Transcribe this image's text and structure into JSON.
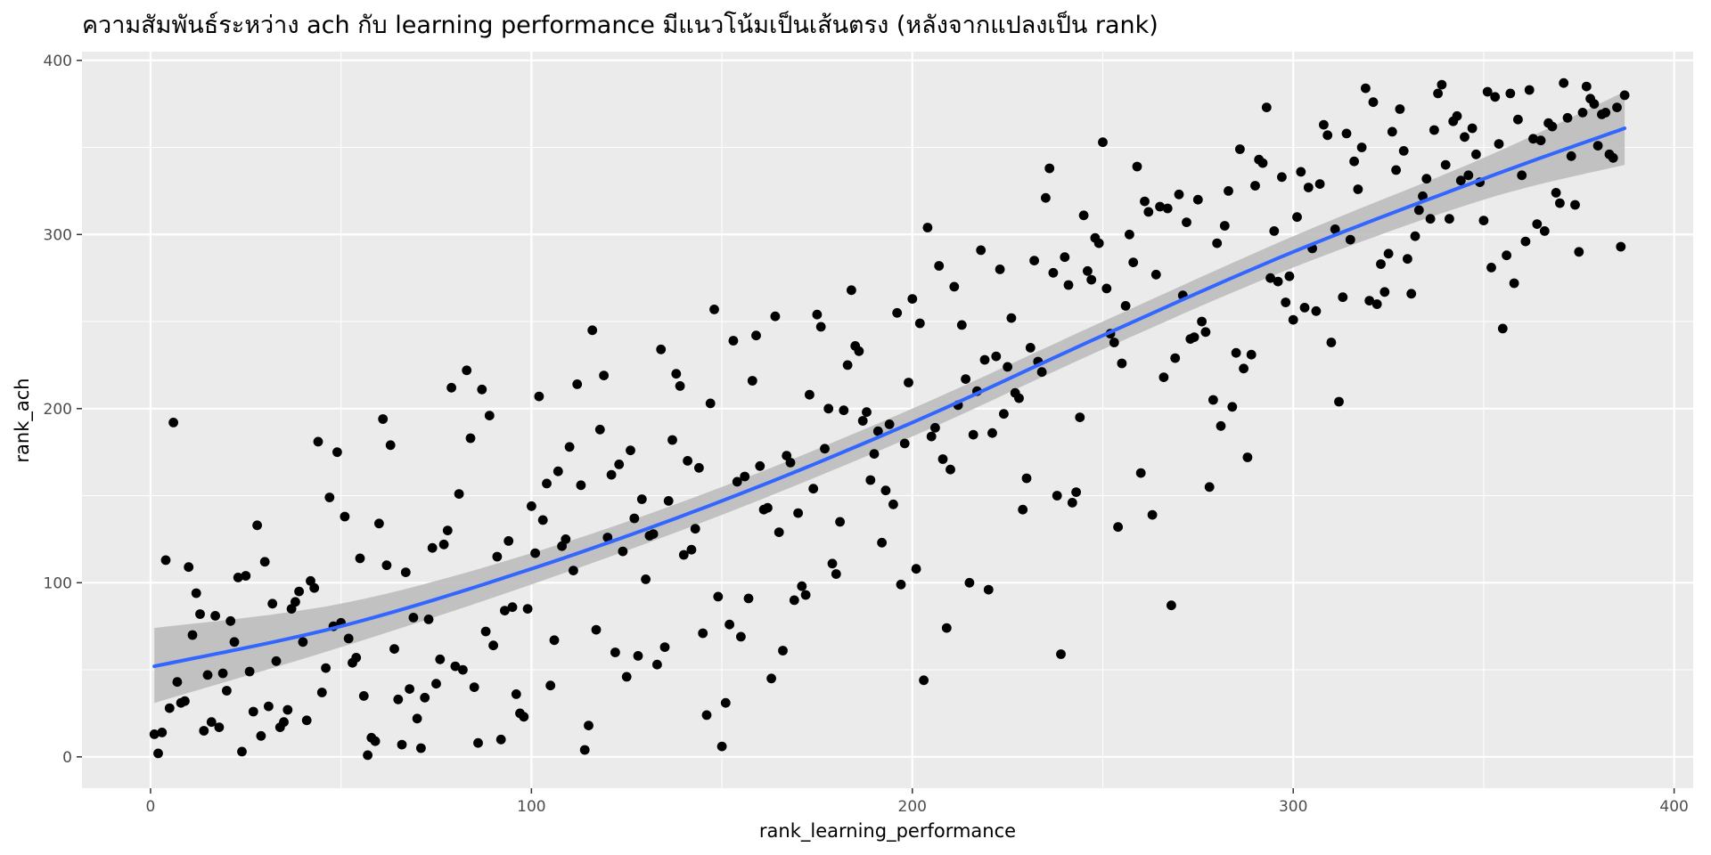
{
  "chart_data": {
    "type": "scatter",
    "title": "ความสัมพันธ์ระหว่าง ach กับ learning performance มีแนวโน้มเป็นเส้นตรง (หลังจากแปลงเป็น rank)",
    "xlabel": "rank_learning_performance",
    "ylabel": "rank_ach",
    "xlim": [
      -18,
      405
    ],
    "ylim": [
      -18,
      405
    ],
    "xticks": [
      0,
      100,
      200,
      300,
      400
    ],
    "yticks": [
      0,
      100,
      200,
      300,
      400
    ],
    "grid": true,
    "colors": {
      "panel": "#ebebeb",
      "grid": "#ffffff",
      "points": "#000000",
      "smooth": "#3366ff",
      "ribbon": "#bdbdbd"
    },
    "points": [
      [
        1,
        13
      ],
      [
        2,
        2
      ],
      [
        3,
        14
      ],
      [
        4,
        113
      ],
      [
        5,
        28
      ],
      [
        6,
        192
      ],
      [
        7,
        43
      ],
      [
        8,
        31
      ],
      [
        9,
        32
      ],
      [
        10,
        109
      ],
      [
        11,
        70
      ],
      [
        12,
        94
      ],
      [
        13,
        82
      ],
      [
        14,
        15
      ],
      [
        15,
        47
      ],
      [
        16,
        20
      ],
      [
        17,
        81
      ],
      [
        18,
        17
      ],
      [
        19,
        48
      ],
      [
        20,
        38
      ],
      [
        21,
        78
      ],
      [
        22,
        66
      ],
      [
        23,
        103
      ],
      [
        24,
        3
      ],
      [
        25,
        104
      ],
      [
        26,
        49
      ],
      [
        27,
        26
      ],
      [
        28,
        133
      ],
      [
        29,
        12
      ],
      [
        30,
        112
      ],
      [
        31,
        29
      ],
      [
        32,
        88
      ],
      [
        33,
        55
      ],
      [
        34,
        17
      ],
      [
        35,
        20
      ],
      [
        36,
        27
      ],
      [
        37,
        85
      ],
      [
        38,
        89
      ],
      [
        39,
        95
      ],
      [
        40,
        66
      ],
      [
        41,
        21
      ],
      [
        42,
        101
      ],
      [
        43,
        97
      ],
      [
        44,
        181
      ],
      [
        45,
        37
      ],
      [
        46,
        51
      ],
      [
        47,
        149
      ],
      [
        48,
        75
      ],
      [
        49,
        175
      ],
      [
        50,
        77
      ],
      [
        51,
        138
      ],
      [
        52,
        68
      ],
      [
        53,
        54
      ],
      [
        54,
        57
      ],
      [
        55,
        114
      ],
      [
        56,
        35
      ],
      [
        57,
        1
      ],
      [
        58,
        11
      ],
      [
        59,
        9
      ],
      [
        60,
        134
      ],
      [
        61,
        194
      ],
      [
        62,
        110
      ],
      [
        63,
        179
      ],
      [
        64,
        62
      ],
      [
        65,
        33
      ],
      [
        66,
        7
      ],
      [
        67,
        106
      ],
      [
        68,
        39
      ],
      [
        69,
        80
      ],
      [
        70,
        22
      ],
      [
        71,
        5
      ],
      [
        72,
        34
      ],
      [
        73,
        79
      ],
      [
        74,
        120
      ],
      [
        75,
        42
      ],
      [
        76,
        56
      ],
      [
        77,
        122
      ],
      [
        78,
        130
      ],
      [
        79,
        212
      ],
      [
        80,
        52
      ],
      [
        81,
        151
      ],
      [
        82,
        50
      ],
      [
        83,
        222
      ],
      [
        84,
        183
      ],
      [
        85,
        40
      ],
      [
        86,
        8
      ],
      [
        87,
        211
      ],
      [
        88,
        72
      ],
      [
        89,
        196
      ],
      [
        90,
        64
      ],
      [
        91,
        115
      ],
      [
        92,
        10
      ],
      [
        93,
        84
      ],
      [
        94,
        124
      ],
      [
        95,
        86
      ],
      [
        96,
        36
      ],
      [
        97,
        25
      ],
      [
        98,
        23
      ],
      [
        99,
        85
      ],
      [
        100,
        144
      ],
      [
        101,
        117
      ],
      [
        102,
        207
      ],
      [
        103,
        136
      ],
      [
        104,
        157
      ],
      [
        105,
        41
      ],
      [
        106,
        67
      ],
      [
        107,
        164
      ],
      [
        108,
        121
      ],
      [
        109,
        125
      ],
      [
        110,
        178
      ],
      [
        111,
        107
      ],
      [
        112,
        214
      ],
      [
        113,
        156
      ],
      [
        114,
        4
      ],
      [
        115,
        18
      ],
      [
        116,
        245
      ],
      [
        117,
        73
      ],
      [
        118,
        188
      ],
      [
        119,
        219
      ],
      [
        120,
        126
      ],
      [
        121,
        162
      ],
      [
        122,
        60
      ],
      [
        123,
        168
      ],
      [
        124,
        118
      ],
      [
        125,
        46
      ],
      [
        126,
        176
      ],
      [
        127,
        137
      ],
      [
        128,
        58
      ],
      [
        129,
        148
      ],
      [
        130,
        102
      ],
      [
        131,
        127
      ],
      [
        132,
        128
      ],
      [
        133,
        53
      ],
      [
        134,
        234
      ],
      [
        135,
        63
      ],
      [
        136,
        147
      ],
      [
        137,
        182
      ],
      [
        138,
        220
      ],
      [
        139,
        213
      ],
      [
        140,
        116
      ],
      [
        141,
        170
      ],
      [
        142,
        119
      ],
      [
        143,
        131
      ],
      [
        144,
        166
      ],
      [
        145,
        71
      ],
      [
        146,
        24
      ],
      [
        147,
        203
      ],
      [
        148,
        257
      ],
      [
        149,
        92
      ],
      [
        150,
        6
      ],
      [
        151,
        31
      ],
      [
        152,
        76
      ],
      [
        153,
        239
      ],
      [
        154,
        158
      ],
      [
        155,
        69
      ],
      [
        156,
        161
      ],
      [
        157,
        91
      ],
      [
        158,
        216
      ],
      [
        159,
        242
      ],
      [
        160,
        167
      ],
      [
        161,
        142
      ],
      [
        162,
        143
      ],
      [
        163,
        45
      ],
      [
        164,
        253
      ],
      [
        165,
        129
      ],
      [
        166,
        61
      ],
      [
        167,
        173
      ],
      [
        168,
        169
      ],
      [
        169,
        90
      ],
      [
        170,
        140
      ],
      [
        171,
        98
      ],
      [
        172,
        93
      ],
      [
        173,
        208
      ],
      [
        174,
        154
      ],
      [
        175,
        254
      ],
      [
        176,
        247
      ],
      [
        177,
        177
      ],
      [
        178,
        200
      ],
      [
        179,
        111
      ],
      [
        180,
        105
      ],
      [
        181,
        135
      ],
      [
        182,
        199
      ],
      [
        183,
        225
      ],
      [
        184,
        268
      ],
      [
        185,
        236
      ],
      [
        186,
        233
      ],
      [
        187,
        193
      ],
      [
        188,
        198
      ],
      [
        189,
        159
      ],
      [
        190,
        174
      ],
      [
        191,
        187
      ],
      [
        192,
        123
      ],
      [
        193,
        153
      ],
      [
        194,
        191
      ],
      [
        195,
        145
      ],
      [
        196,
        255
      ],
      [
        197,
        99
      ],
      [
        198,
        180
      ],
      [
        199,
        215
      ],
      [
        200,
        263
      ],
      [
        201,
        108
      ],
      [
        202,
        249
      ],
      [
        203,
        44
      ],
      [
        204,
        304
      ],
      [
        205,
        184
      ],
      [
        206,
        189
      ],
      [
        207,
        282
      ],
      [
        208,
        171
      ],
      [
        209,
        74
      ],
      [
        210,
        165
      ],
      [
        211,
        270
      ],
      [
        212,
        202
      ],
      [
        213,
        248
      ],
      [
        214,
        217
      ],
      [
        215,
        100
      ],
      [
        216,
        185
      ],
      [
        217,
        210
      ],
      [
        218,
        291
      ],
      [
        219,
        228
      ],
      [
        220,
        96
      ],
      [
        221,
        186
      ],
      [
        222,
        230
      ],
      [
        223,
        280
      ],
      [
        224,
        197
      ],
      [
        225,
        224
      ],
      [
        226,
        252
      ],
      [
        227,
        209
      ],
      [
        228,
        206
      ],
      [
        229,
        142
      ],
      [
        230,
        160
      ],
      [
        231,
        235
      ],
      [
        232,
        285
      ],
      [
        233,
        227
      ],
      [
        234,
        221
      ],
      [
        235,
        321
      ],
      [
        236,
        338
      ],
      [
        237,
        278
      ],
      [
        238,
        150
      ],
      [
        239,
        59
      ],
      [
        240,
        287
      ],
      [
        241,
        271
      ],
      [
        242,
        146
      ],
      [
        243,
        152
      ],
      [
        244,
        195
      ],
      [
        245,
        311
      ],
      [
        246,
        279
      ],
      [
        247,
        274
      ],
      [
        248,
        298
      ],
      [
        249,
        295
      ],
      [
        250,
        353
      ],
      [
        251,
        269
      ],
      [
        252,
        243
      ],
      [
        253,
        238
      ],
      [
        254,
        132
      ],
      [
        255,
        226
      ],
      [
        256,
        259
      ],
      [
        257,
        300
      ],
      [
        258,
        284
      ],
      [
        259,
        339
      ],
      [
        260,
        163
      ],
      [
        261,
        319
      ],
      [
        262,
        313
      ],
      [
        263,
        139
      ],
      [
        264,
        277
      ],
      [
        265,
        316
      ],
      [
        266,
        218
      ],
      [
        267,
        315
      ],
      [
        268,
        87
      ],
      [
        269,
        229
      ],
      [
        270,
        323
      ],
      [
        271,
        265
      ],
      [
        272,
        307
      ],
      [
        273,
        240
      ],
      [
        274,
        241
      ],
      [
        275,
        320
      ],
      [
        276,
        250
      ],
      [
        277,
        244
      ],
      [
        278,
        155
      ],
      [
        279,
        205
      ],
      [
        280,
        295
      ],
      [
        281,
        190
      ],
      [
        282,
        305
      ],
      [
        283,
        325
      ],
      [
        284,
        201
      ],
      [
        285,
        232
      ],
      [
        286,
        349
      ],
      [
        287,
        223
      ],
      [
        288,
        172
      ],
      [
        289,
        231
      ],
      [
        290,
        328
      ],
      [
        291,
        343
      ],
      [
        292,
        341
      ],
      [
        293,
        373
      ],
      [
        294,
        275
      ],
      [
        295,
        302
      ],
      [
        296,
        273
      ],
      [
        297,
        333
      ],
      [
        298,
        261
      ],
      [
        299,
        276
      ],
      [
        300,
        251
      ],
      [
        301,
        310
      ],
      [
        302,
        336
      ],
      [
        303,
        258
      ],
      [
        304,
        327
      ],
      [
        305,
        292
      ],
      [
        306,
        256
      ],
      [
        307,
        329
      ],
      [
        308,
        363
      ],
      [
        309,
        357
      ],
      [
        310,
        238
      ],
      [
        311,
        303
      ],
      [
        312,
        204
      ],
      [
        313,
        264
      ],
      [
        314,
        358
      ],
      [
        315,
        297
      ],
      [
        316,
        342
      ],
      [
        317,
        326
      ],
      [
        318,
        350
      ],
      [
        319,
        384
      ],
      [
        320,
        262
      ],
      [
        321,
        376
      ],
      [
        322,
        260
      ],
      [
        323,
        283
      ],
      [
        324,
        267
      ],
      [
        325,
        289
      ],
      [
        326,
        359
      ],
      [
        327,
        337
      ],
      [
        328,
        372
      ],
      [
        329,
        348
      ],
      [
        330,
        286
      ],
      [
        331,
        266
      ],
      [
        332,
        299
      ],
      [
        333,
        314
      ],
      [
        334,
        322
      ],
      [
        335,
        332
      ],
      [
        336,
        309
      ],
      [
        337,
        360
      ],
      [
        338,
        381
      ],
      [
        339,
        386
      ],
      [
        340,
        340
      ],
      [
        341,
        309
      ],
      [
        342,
        365
      ],
      [
        343,
        368
      ],
      [
        344,
        331
      ],
      [
        345,
        356
      ],
      [
        346,
        334
      ],
      [
        347,
        361
      ],
      [
        348,
        346
      ],
      [
        349,
        330
      ],
      [
        350,
        308
      ],
      [
        351,
        382
      ],
      [
        352,
        281
      ],
      [
        353,
        379
      ],
      [
        354,
        352
      ],
      [
        355,
        246
      ],
      [
        356,
        288
      ],
      [
        357,
        381
      ],
      [
        358,
        272
      ],
      [
        359,
        366
      ],
      [
        360,
        334
      ],
      [
        361,
        296
      ],
      [
        362,
        383
      ],
      [
        363,
        355
      ],
      [
        364,
        306
      ],
      [
        365,
        354
      ],
      [
        366,
        302
      ],
      [
        367,
        364
      ],
      [
        368,
        362
      ],
      [
        369,
        324
      ],
      [
        370,
        318
      ],
      [
        371,
        387
      ],
      [
        372,
        367
      ],
      [
        373,
        345
      ],
      [
        374,
        317
      ],
      [
        375,
        290
      ],
      [
        376,
        370
      ],
      [
        377,
        385
      ],
      [
        378,
        378
      ],
      [
        379,
        375
      ],
      [
        380,
        351
      ],
      [
        381,
        369
      ],
      [
        382,
        370
      ],
      [
        383,
        346
      ],
      [
        384,
        344
      ],
      [
        385,
        373
      ],
      [
        386,
        293
      ],
      [
        387,
        380
      ]
    ],
    "smooth": {
      "x": [
        1,
        50,
        100,
        150,
        200,
        250,
        300,
        350,
        387
      ],
      "y": [
        52,
        75,
        108,
        147,
        192,
        242,
        290,
        332,
        361
      ],
      "lower": [
        31,
        63,
        99,
        139,
        184,
        234,
        281,
        320,
        340
      ],
      "upper": [
        74,
        88,
        117,
        155,
        200,
        250,
        299,
        344,
        382
      ]
    }
  }
}
